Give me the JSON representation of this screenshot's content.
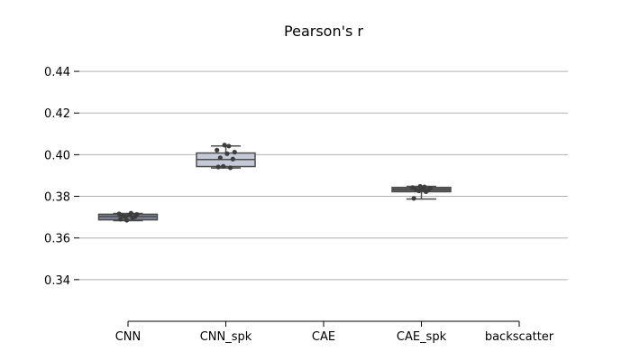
{
  "chart_data": {
    "type": "box",
    "title": "Pearson's r",
    "xlabel": "",
    "ylabel": "",
    "categories": [
      "CNN",
      "CNN_spk",
      "CAE",
      "CAE_spk",
      "backscatter"
    ],
    "ylim": [
      0.32,
      0.45
    ],
    "yticks": [
      0.34,
      0.36,
      0.38,
      0.4,
      0.42,
      0.44
    ],
    "ytick_labels": [
      "0.34",
      "0.36",
      "0.38",
      "0.40",
      "0.42",
      "0.44"
    ],
    "grid": "y",
    "boxes": [
      {
        "category": "CNN",
        "q1": 0.3687,
        "median": 0.3703,
        "q3": 0.3714,
        "whisker_low": 0.3683,
        "whisker_high": 0.3718,
        "color": "#7d8296",
        "points": [
          0.369,
          0.3697,
          0.3701,
          0.3703,
          0.3706,
          0.371,
          0.3713,
          0.3716,
          0.3719,
          0.3685
        ]
      },
      {
        "category": "CNN_spk",
        "q1": 0.3943,
        "median": 0.3977,
        "q3": 0.4008,
        "whisker_low": 0.3936,
        "whisker_high": 0.4042,
        "color": "#c5cad8",
        "points": [
          0.3941,
          0.3937,
          0.3944,
          0.3979,
          0.3985,
          0.4005,
          0.4012,
          0.4022,
          0.4041,
          0.4046
        ]
      },
      {
        "category": "CAE",
        "q1": null,
        "median": null,
        "q3": null,
        "whisker_low": null,
        "whisker_high": null,
        "color": "#c5cad8",
        "points": []
      },
      {
        "category": "CAE_spk",
        "q1": 0.3822,
        "median": 0.3833,
        "q3": 0.3843,
        "whisker_low": 0.3787,
        "whisker_high": 0.3848,
        "color": "#5e5e5e",
        "points": [
          0.379,
          0.3822,
          0.3826,
          0.383,
          0.3833,
          0.3836,
          0.3839,
          0.3842,
          0.3845,
          0.3848
        ]
      },
      {
        "category": "backscatter",
        "q1": null,
        "median": null,
        "q3": null,
        "whisker_low": null,
        "whisker_high": null,
        "color": "#c5cad8",
        "points": []
      }
    ],
    "colors": {
      "grid": "#b0b0b0",
      "axis": "#000000",
      "box_edge": "#4d4d4d",
      "point": "#3d3d3d"
    }
  }
}
